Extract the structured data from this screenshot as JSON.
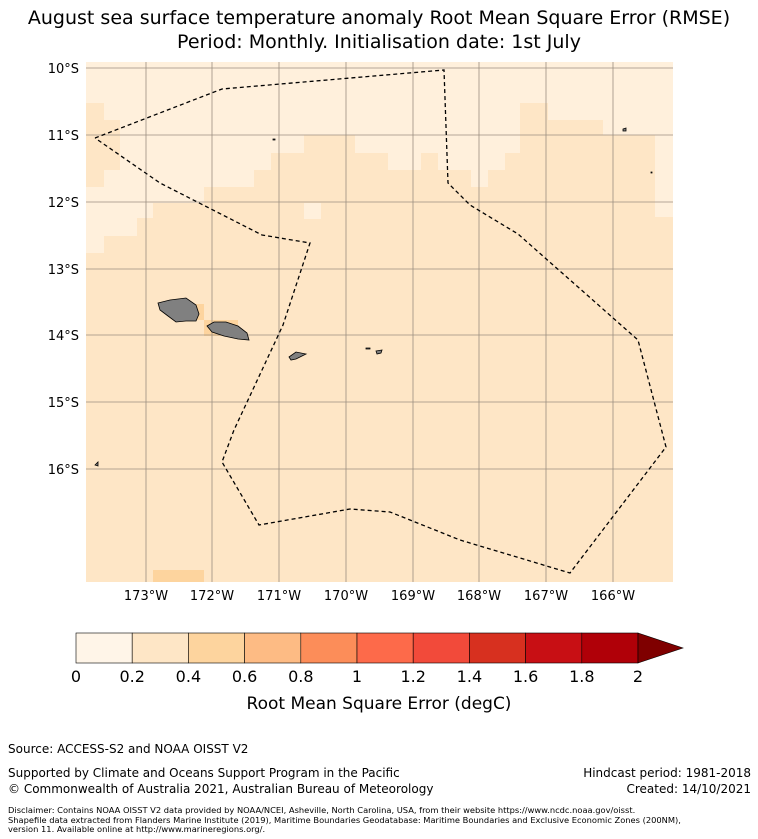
{
  "header": {
    "title_line1": "August sea surface temperature anomaly Root Mean Square Error (RMSE)",
    "title_line2": "Period: Monthly. Initialisation date: 1st July"
  },
  "map": {
    "lat_labels": [
      "10°S",
      "11°S",
      "12°S",
      "13°S",
      "14°S",
      "15°S",
      "16°S"
    ],
    "lon_labels": [
      "173°W",
      "172°W",
      "171°W",
      "170°W",
      "169°W",
      "168°W",
      "167°W",
      "166°W"
    ],
    "field_colors": {
      "band_0_0.2": "#fff0dc",
      "band_0.2_0.4": "#fee6c6",
      "land": "#808080",
      "grid": "#9b8e80",
      "eez_boundary": "#000000"
    },
    "boundary_style": "dashed",
    "features": [
      "samoa-islands",
      "american-samoa-islands",
      "eez-boundary"
    ]
  },
  "colorbar": {
    "tick_labels": [
      "0",
      "0.2",
      "0.4",
      "0.6",
      "0.8",
      "1",
      "1.2",
      "1.4",
      "1.6",
      "1.8",
      "2"
    ],
    "colors": [
      "#fff5e8",
      "#fee6c6",
      "#fdd49e",
      "#fdbb84",
      "#fc8d59",
      "#fd6a4a",
      "#f24a3a",
      "#d7301f",
      "#c80f14",
      "#b00008",
      "#7f0000"
    ],
    "extend": "max",
    "label": "Root Mean Square Error (degC)"
  },
  "footer": {
    "source": "Source: ACCESS-S2 and NOAA OISST V2",
    "supported_by": "Supported by Climate and Oceans Support Program in the Pacific",
    "copyright": "© Commonwealth of Australia 2021, Australian Bureau of Meteorology",
    "hindcast_period": "Hindcast period: 1981-2018",
    "created": "Created: 14/10/2021",
    "disclaimer_line1": "Disclaimer: Contains NOAA OISST V2 data provided by NOAA/NCEI, Asheville, North Carolina, USA, from their website https://www.ncdc.noaa.gov/oisst.",
    "disclaimer_line2": "Shapefile data extracted from Flanders Marine Institute (2019), Maritime Boundaries Geodatabase: Maritime Boundaries and Exclusive Economic Zones (200NM),",
    "disclaimer_line3": "version 11. Available online at http://www.marineregions.org/."
  }
}
